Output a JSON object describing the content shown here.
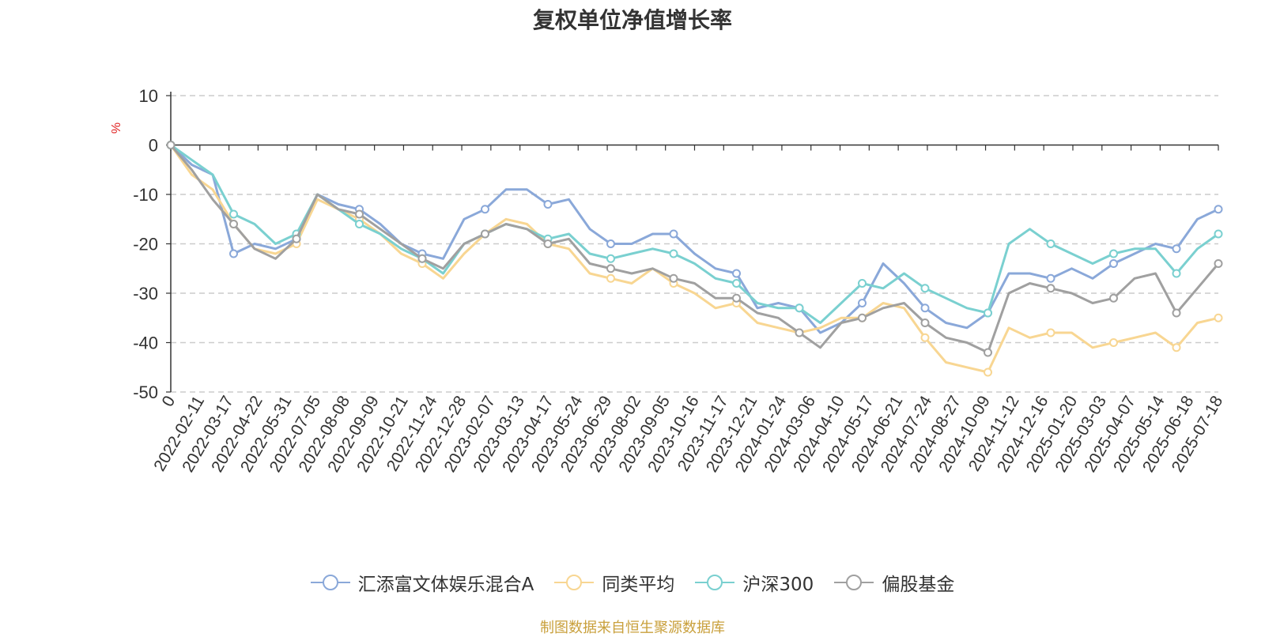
{
  "chart_data": {
    "type": "line",
    "title": "复权单位净值增长率",
    "ylabel": "%",
    "ylim": [
      -50,
      10
    ],
    "yticks": [
      10,
      0,
      -10,
      -20,
      -30,
      -40,
      -50
    ],
    "xlabels": [
      "0",
      "2022-02-11",
      "2022-03-17",
      "2022-04-22",
      "2022-05-31",
      "2022-07-05",
      "2022-08-08",
      "2022-09-09",
      "2022-10-21",
      "2022-11-24",
      "2022-12-28",
      "2023-02-07",
      "2023-03-13",
      "2023-04-17",
      "2023-05-24",
      "2023-06-29",
      "2023-08-02",
      "2023-09-05",
      "2023-10-16",
      "2023-11-17",
      "2023-12-21",
      "2024-01-24",
      "2024-03-06",
      "2024-04-10",
      "2024-05-17",
      "2024-06-21",
      "2024-07-24",
      "2024-08-27",
      "2024-10-09",
      "2024-11-12",
      "2024-12-16",
      "2025-01-20",
      "2025-03-03",
      "2025-04-07",
      "2025-05-14",
      "2025-06-18",
      "2025-07-18"
    ],
    "grid": "dashed horizontal",
    "legend_position": "bottom",
    "series": [
      {
        "name": "汇添富文体娱乐混合A",
        "color": "#8aa8d9",
        "values": [
          0,
          -4,
          -6,
          -22,
          -20,
          -21,
          -19,
          -10,
          -12,
          -13,
          -16,
          -20,
          -22,
          -23,
          -15,
          -13,
          -9,
          -9,
          -12,
          -11,
          -17,
          -20,
          -20,
          -18,
          -18,
          -22,
          -25,
          -26,
          -33,
          -32,
          -33,
          -38,
          -36,
          -32,
          -24,
          -28,
          -33,
          -36,
          -37,
          -34,
          -26,
          -26,
          -27,
          -25,
          -27,
          -24,
          -22,
          -20,
          -21,
          -15,
          -13
        ]
      },
      {
        "name": "同类平均",
        "color": "#f8d692",
        "values": [
          0,
          -6,
          -9,
          -16,
          -21,
          -22,
          -20,
          -11,
          -13,
          -15,
          -18,
          -22,
          -24,
          -27,
          -22,
          -18,
          -15,
          -16,
          -20,
          -21,
          -26,
          -27,
          -28,
          -25,
          -28,
          -30,
          -33,
          -32,
          -36,
          -37,
          -38,
          -37,
          -35,
          -35,
          -32,
          -33,
          -39,
          -44,
          -45,
          -46,
          -37,
          -39,
          -38,
          -38,
          -41,
          -40,
          -39,
          -38,
          -41,
          -36,
          -35
        ]
      },
      {
        "name": "沪深300",
        "color": "#7ad0d0",
        "values": [
          0,
          -3,
          -6,
          -14,
          -16,
          -20,
          -18,
          -10,
          -13,
          -16,
          -18,
          -21,
          -23,
          -26,
          -20,
          -18,
          -16,
          -17,
          -19,
          -18,
          -22,
          -23,
          -22,
          -21,
          -22,
          -24,
          -27,
          -28,
          -32,
          -33,
          -33,
          -36,
          -32,
          -28,
          -29,
          -26,
          -29,
          -31,
          -33,
          -34,
          -20,
          -17,
          -20,
          -22,
          -24,
          -22,
          -21,
          -21,
          -26,
          -21,
          -18
        ]
      },
      {
        "name": "偏股基金",
        "color": "#a0a0a0",
        "values": [
          0,
          -5,
          -11,
          -16,
          -21,
          -23,
          -19,
          -10,
          -13,
          -14,
          -17,
          -20,
          -23,
          -25,
          -20,
          -18,
          -16,
          -17,
          -20,
          -19,
          -24,
          -25,
          -26,
          -25,
          -27,
          -28,
          -31,
          -31,
          -34,
          -35,
          -38,
          -41,
          -36,
          -35,
          -33,
          -32,
          -36,
          -39,
          -40,
          -42,
          -30,
          -28,
          -29,
          -30,
          -32,
          -31,
          -27,
          -26,
          -34,
          -29,
          -24
        ]
      }
    ]
  },
  "legend": [
    {
      "label": "汇添富文体娱乐混合A",
      "color": "#8aa8d9"
    },
    {
      "label": "同类平均",
      "color": "#f8d692"
    },
    {
      "label": "沪深300",
      "color": "#7ad0d0"
    },
    {
      "label": "偏股基金",
      "color": "#a0a0a0"
    }
  ],
  "footer": {
    "source": "制图数据来自恒生聚源数据库"
  }
}
